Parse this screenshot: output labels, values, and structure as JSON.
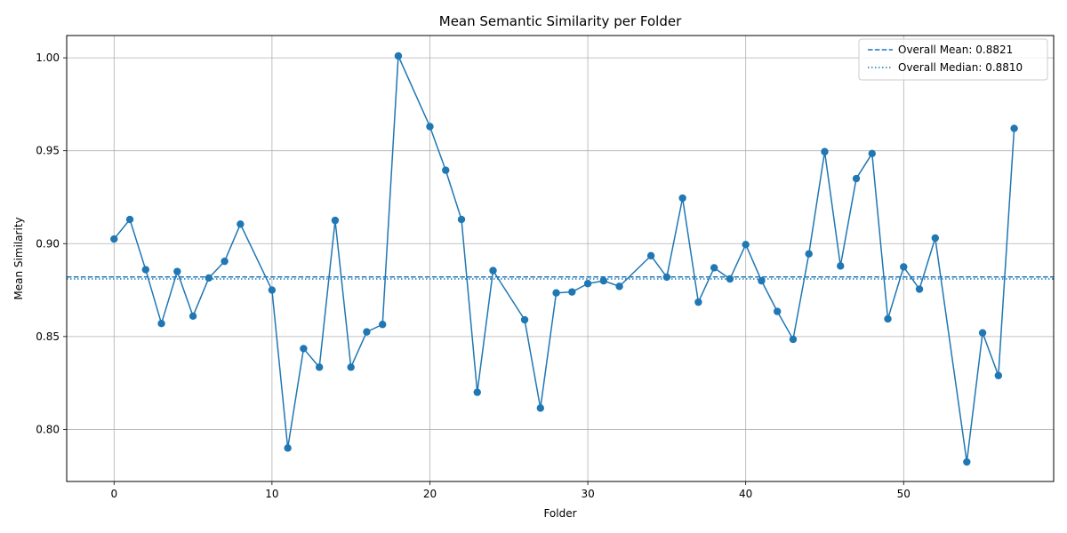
{
  "chart_data": {
    "type": "line",
    "title": "Mean Semantic Similarity per Folder",
    "xlabel": "Folder",
    "ylabel": "Mean Similarity",
    "xlim": [
      -3,
      59.5
    ],
    "ylim": [
      0.772,
      1.012
    ],
    "x_ticks": [
      0,
      10,
      20,
      30,
      40,
      50
    ],
    "y_ticks": [
      0.8,
      0.85,
      0.9,
      0.95,
      1.0
    ],
    "y_tick_labels": [
      "0.80",
      "0.85",
      "0.90",
      "0.95",
      "1.00"
    ],
    "grid": true,
    "legend_position": "top-right",
    "colors": {
      "series": "#1f77b4"
    },
    "series": [
      {
        "x": [
          0,
          1,
          2,
          3,
          4,
          5,
          6,
          7,
          8,
          10,
          11,
          12,
          13,
          14,
          15,
          16,
          17,
          18,
          20,
          21,
          22,
          23,
          24,
          26,
          27,
          28,
          29,
          30,
          31,
          32,
          34,
          35,
          36,
          37,
          38,
          39,
          40,
          41,
          42,
          43,
          44,
          45,
          46,
          47,
          48,
          49,
          50,
          51,
          52,
          54,
          55,
          56,
          57
        ],
        "values": [
          0.9025,
          0.913,
          0.886,
          0.857,
          0.885,
          0.861,
          0.8815,
          0.8905,
          0.9105,
          0.875,
          0.79,
          0.8435,
          0.8335,
          0.9125,
          0.8335,
          0.8525,
          0.8565,
          1.001,
          0.963,
          0.9395,
          0.913,
          0.82,
          0.8855,
          0.859,
          0.8115,
          0.8735,
          0.874,
          0.8785,
          0.88,
          0.877,
          0.8935,
          0.882,
          0.9245,
          0.8685,
          0.887,
          0.881,
          0.8995,
          0.88,
          0.8635,
          0.8485,
          0.8945,
          0.9495,
          0.888,
          0.935,
          0.9485,
          0.8595,
          0.8875,
          0.8755,
          0.903,
          0.7825,
          0.852,
          0.829,
          0.962
        ]
      }
    ],
    "reference_lines": [
      {
        "label": "Overall Mean: 0.8821",
        "value": 0.8821,
        "style": "dashed"
      },
      {
        "label": "Overall Median: 0.8810",
        "value": 0.881,
        "style": "dotted"
      }
    ]
  }
}
